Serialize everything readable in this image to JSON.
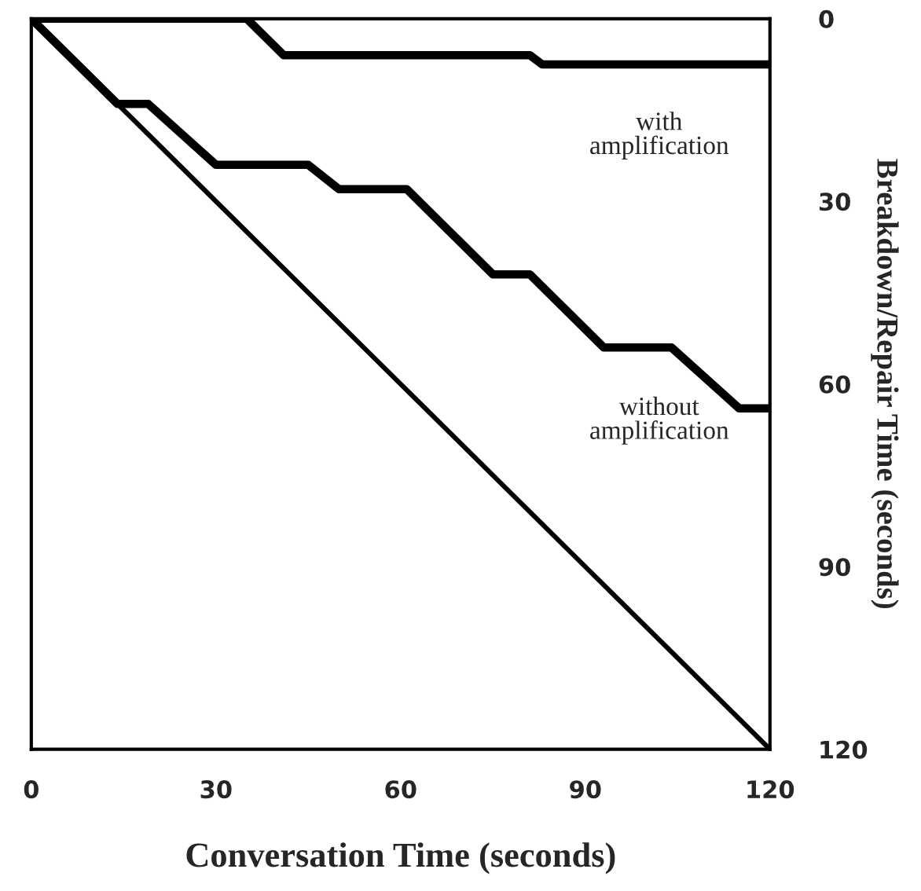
{
  "chart_data": {
    "type": "line",
    "xlabel": "Conversation Time (seconds)",
    "ylabel": "Breakdown/Repair Time (seconds)",
    "xlim": [
      0,
      120
    ],
    "xticks": [
      0,
      30,
      60,
      90,
      120
    ],
    "ylim": [
      120,
      0
    ],
    "yticks": [
      0,
      30,
      60,
      90,
      120
    ],
    "grid": false,
    "legend": false,
    "marker": "none",
    "line_style": "solid",
    "series": [
      {
        "color": "#000000",
        "x": [
          0,
          120
        ],
        "values": [
          0,
          120
        ]
      },
      {
        "color": "#000000",
        "x": [
          0,
          14,
          19,
          30,
          45,
          50,
          61,
          75,
          81,
          93,
          104,
          115,
          120
        ],
        "values": [
          0,
          14,
          14,
          24,
          24,
          28,
          28,
          42,
          42,
          54,
          54,
          64,
          64
        ]
      },
      {
        "color": "#000000",
        "x": [
          0,
          35,
          41,
          81,
          83,
          120
        ],
        "values": [
          0,
          0,
          6,
          6,
          7.5,
          7.5
        ]
      }
    ],
    "annotations": [
      "with\namplification",
      "without\namplification"
    ]
  }
}
